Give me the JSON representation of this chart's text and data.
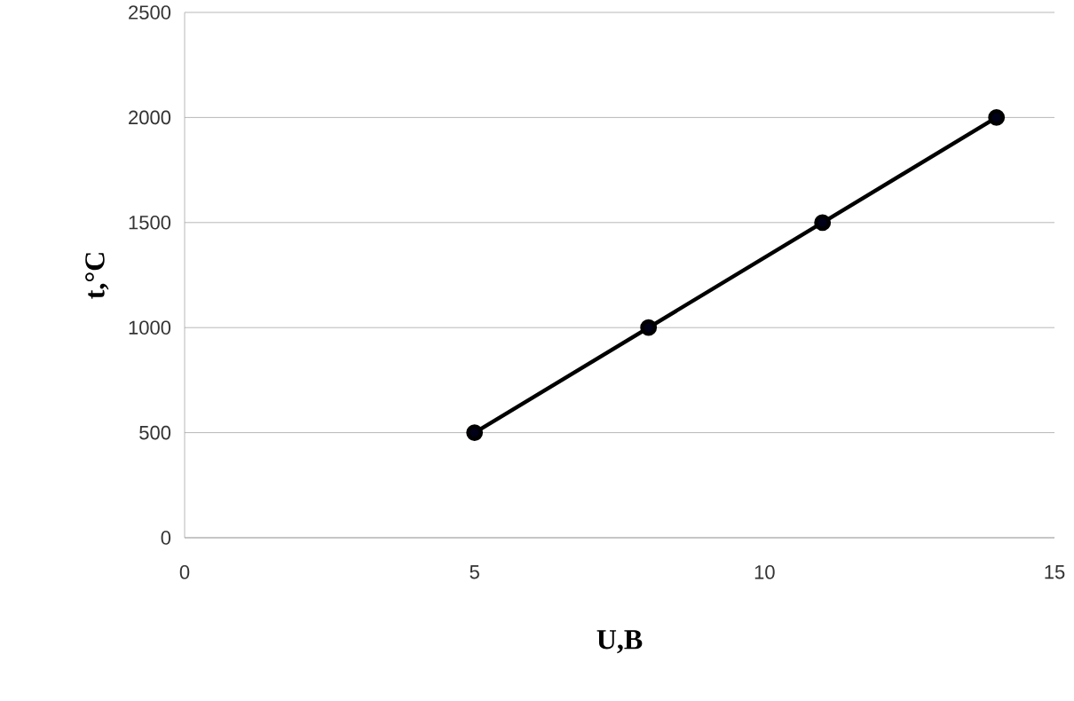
{
  "chart_data": {
    "type": "line",
    "xlabel": "U,B",
    "ylabel": "t,°C",
    "x": [
      5,
      8,
      11,
      14
    ],
    "series": [
      {
        "color": "#000000",
        "values": [
          500,
          1000,
          1500,
          2000
        ]
      }
    ],
    "xlim": [
      0,
      15
    ],
    "xticks": [
      0,
      5,
      10,
      15
    ],
    "ylim": [
      0,
      2500
    ],
    "yticks": [
      0,
      500,
      1000,
      1500,
      2000,
      2500
    ],
    "grid": "y",
    "marker": "circle",
    "line_style": "solid"
  }
}
